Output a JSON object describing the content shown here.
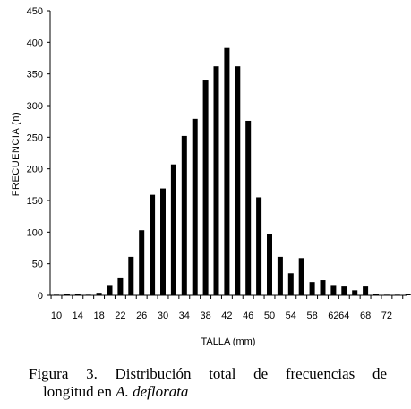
{
  "chart_data": {
    "type": "bar",
    "xlabel": "TALLA  (mm)",
    "ylabel": "FRECUENCIA (n)",
    "ylim": [
      0,
      450
    ],
    "yticks": [
      0,
      50,
      100,
      150,
      200,
      250,
      300,
      350,
      400,
      450
    ],
    "x_tick_labels": [
      "10",
      "14",
      "18",
      "22",
      "26",
      "30",
      "34",
      "38",
      "42",
      "46",
      "50",
      "54",
      "58",
      "62",
      "64",
      "68",
      "72"
    ],
    "categories": [
      10,
      12,
      14,
      16,
      18,
      20,
      22,
      24,
      26,
      28,
      30,
      32,
      34,
      36,
      38,
      40,
      42,
      44,
      46,
      48,
      50,
      52,
      54,
      56,
      58,
      60,
      62,
      64,
      66,
      68,
      70,
      72,
      74,
      76
    ],
    "values": [
      1,
      2,
      2,
      1,
      4,
      15,
      27,
      61,
      103,
      159,
      169,
      207,
      252,
      279,
      341,
      362,
      391,
      362,
      276,
      155,
      97,
      61,
      35,
      59,
      21,
      24,
      15,
      14,
      8,
      14,
      2,
      1,
      1,
      2
    ],
    "grid": false,
    "bar_color": "#000000"
  },
  "caption": {
    "line1": "Figura 3. Distribución total de frecuencias de",
    "line2_prefix": "longitud en ",
    "line2_italic": "A. deflorata"
  }
}
